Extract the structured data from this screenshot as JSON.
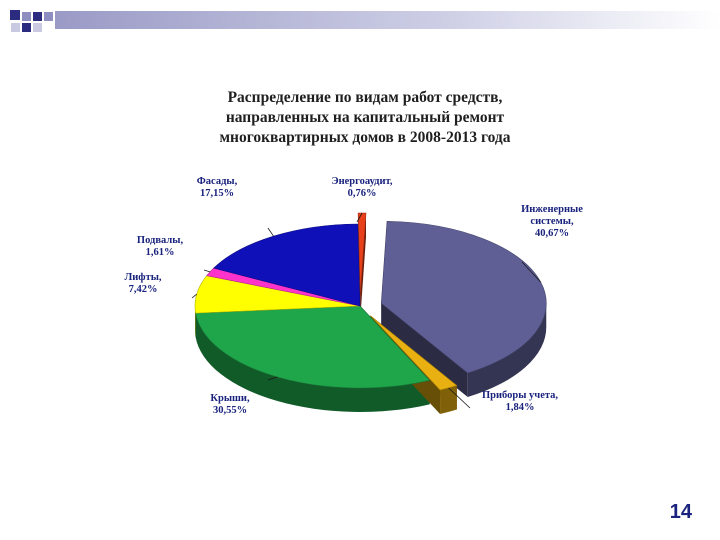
{
  "slide": {
    "page_number": "14"
  },
  "chart_data": {
    "type": "pie",
    "title_lines": [
      "Распределение по видам работ средств,",
      "направленных на капитальный ремонт",
      "многоквартирных домов в 2008-2013 года"
    ],
    "slices": [
      {
        "name": "Инженерные системы,",
        "label_lines": [
          "Инженерные",
          "системы,"
        ],
        "value": 40.67,
        "value_label": "40,67%",
        "color": "#5f5f96",
        "exploded": true
      },
      {
        "name": "Приборы учета,",
        "label_lines": [
          "Приборы учета,"
        ],
        "value": 1.84,
        "value_label": "1,84%",
        "color": "#e8b010",
        "exploded": true
      },
      {
        "name": "Крыши,",
        "label_lines": [
          "Крыши,"
        ],
        "value": 30.55,
        "value_label": "30,55%",
        "color": "#1fa64b",
        "exploded": false
      },
      {
        "name": "Лифты,",
        "label_lines": [
          "Лифты,"
        ],
        "value": 7.42,
        "value_label": "7,42%",
        "color": "#ffff00",
        "exploded": false
      },
      {
        "name": "Подвалы,",
        "label_lines": [
          "Подвалы,"
        ],
        "value": 1.61,
        "value_label": "1,61%",
        "color": "#ff33cc",
        "exploded": false
      },
      {
        "name": "Фасады,",
        "label_lines": [
          "Фасады,"
        ],
        "value": 17.15,
        "value_label": "17,15%",
        "color": "#1010b8",
        "exploded": false
      },
      {
        "name": "Энергоаудит,",
        "label_lines": [
          "Энергоаудит,"
        ],
        "value": 0.76,
        "value_label": "0,76%",
        "color": "#e8401a",
        "exploded": true
      }
    ],
    "style": "3d-exploded-pie"
  }
}
